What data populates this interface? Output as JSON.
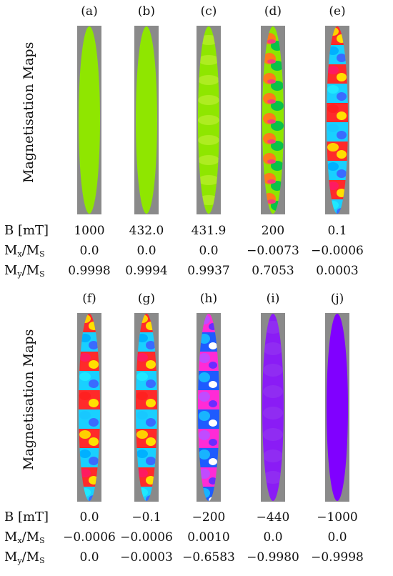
{
  "y_axis_label": "Magnetisation Maps",
  "row_labels": {
    "b_prefix": "B [mT]",
    "mx_main": "M",
    "mx_sub": "x",
    "mx_slash": "/M",
    "mx_sub2": "S",
    "my_main": "M",
    "my_sub": "y",
    "my_slash": "/M",
    "my_sub2": "S"
  },
  "top_panels": [
    {
      "label": "(a)",
      "B": "1000",
      "Mx": "0.0",
      "My": "0.9998",
      "pattern": "uniform-green"
    },
    {
      "label": "(b)",
      "B": "432.0",
      "Mx": "0.0",
      "My": "0.9994",
      "pattern": "uniform-green"
    },
    {
      "label": "(c)",
      "B": "431.9",
      "Mx": "0.0",
      "My": "0.9937",
      "pattern": "green-stripes"
    },
    {
      "label": "(d)",
      "B": "200",
      "Mx": "−0.0073",
      "My": "0.7053",
      "pattern": "domains-partial"
    },
    {
      "label": "(e)",
      "B": "0.1",
      "Mx": "−0.0006",
      "My": "0.0003",
      "pattern": "domains-full"
    }
  ],
  "bottom_panels": [
    {
      "label": "(f)",
      "B": "0.0",
      "Mx": "−0.0006",
      "My": "0.0",
      "pattern": "domains-full"
    },
    {
      "label": "(g)",
      "B": "−0.1",
      "Mx": "−0.0006",
      "My": "−0.0003",
      "pattern": "domains-full"
    },
    {
      "label": "(h)",
      "B": "−200",
      "Mx": "0.0010",
      "My": "−0.6583",
      "pattern": "domains-purple"
    },
    {
      "label": "(i)",
      "B": "−440",
      "Mx": "0.0",
      "My": "−0.9980",
      "pattern": "uniform-purple-light"
    },
    {
      "label": "(j)",
      "B": "−1000",
      "Mx": "0.0",
      "My": "−0.9998",
      "pattern": "uniform-purple"
    }
  ],
  "colors": {
    "background_rect": "#8a8a8a",
    "green": "#8fe600",
    "purple": "#8000ff",
    "purple_light": "#8a1cf5"
  }
}
